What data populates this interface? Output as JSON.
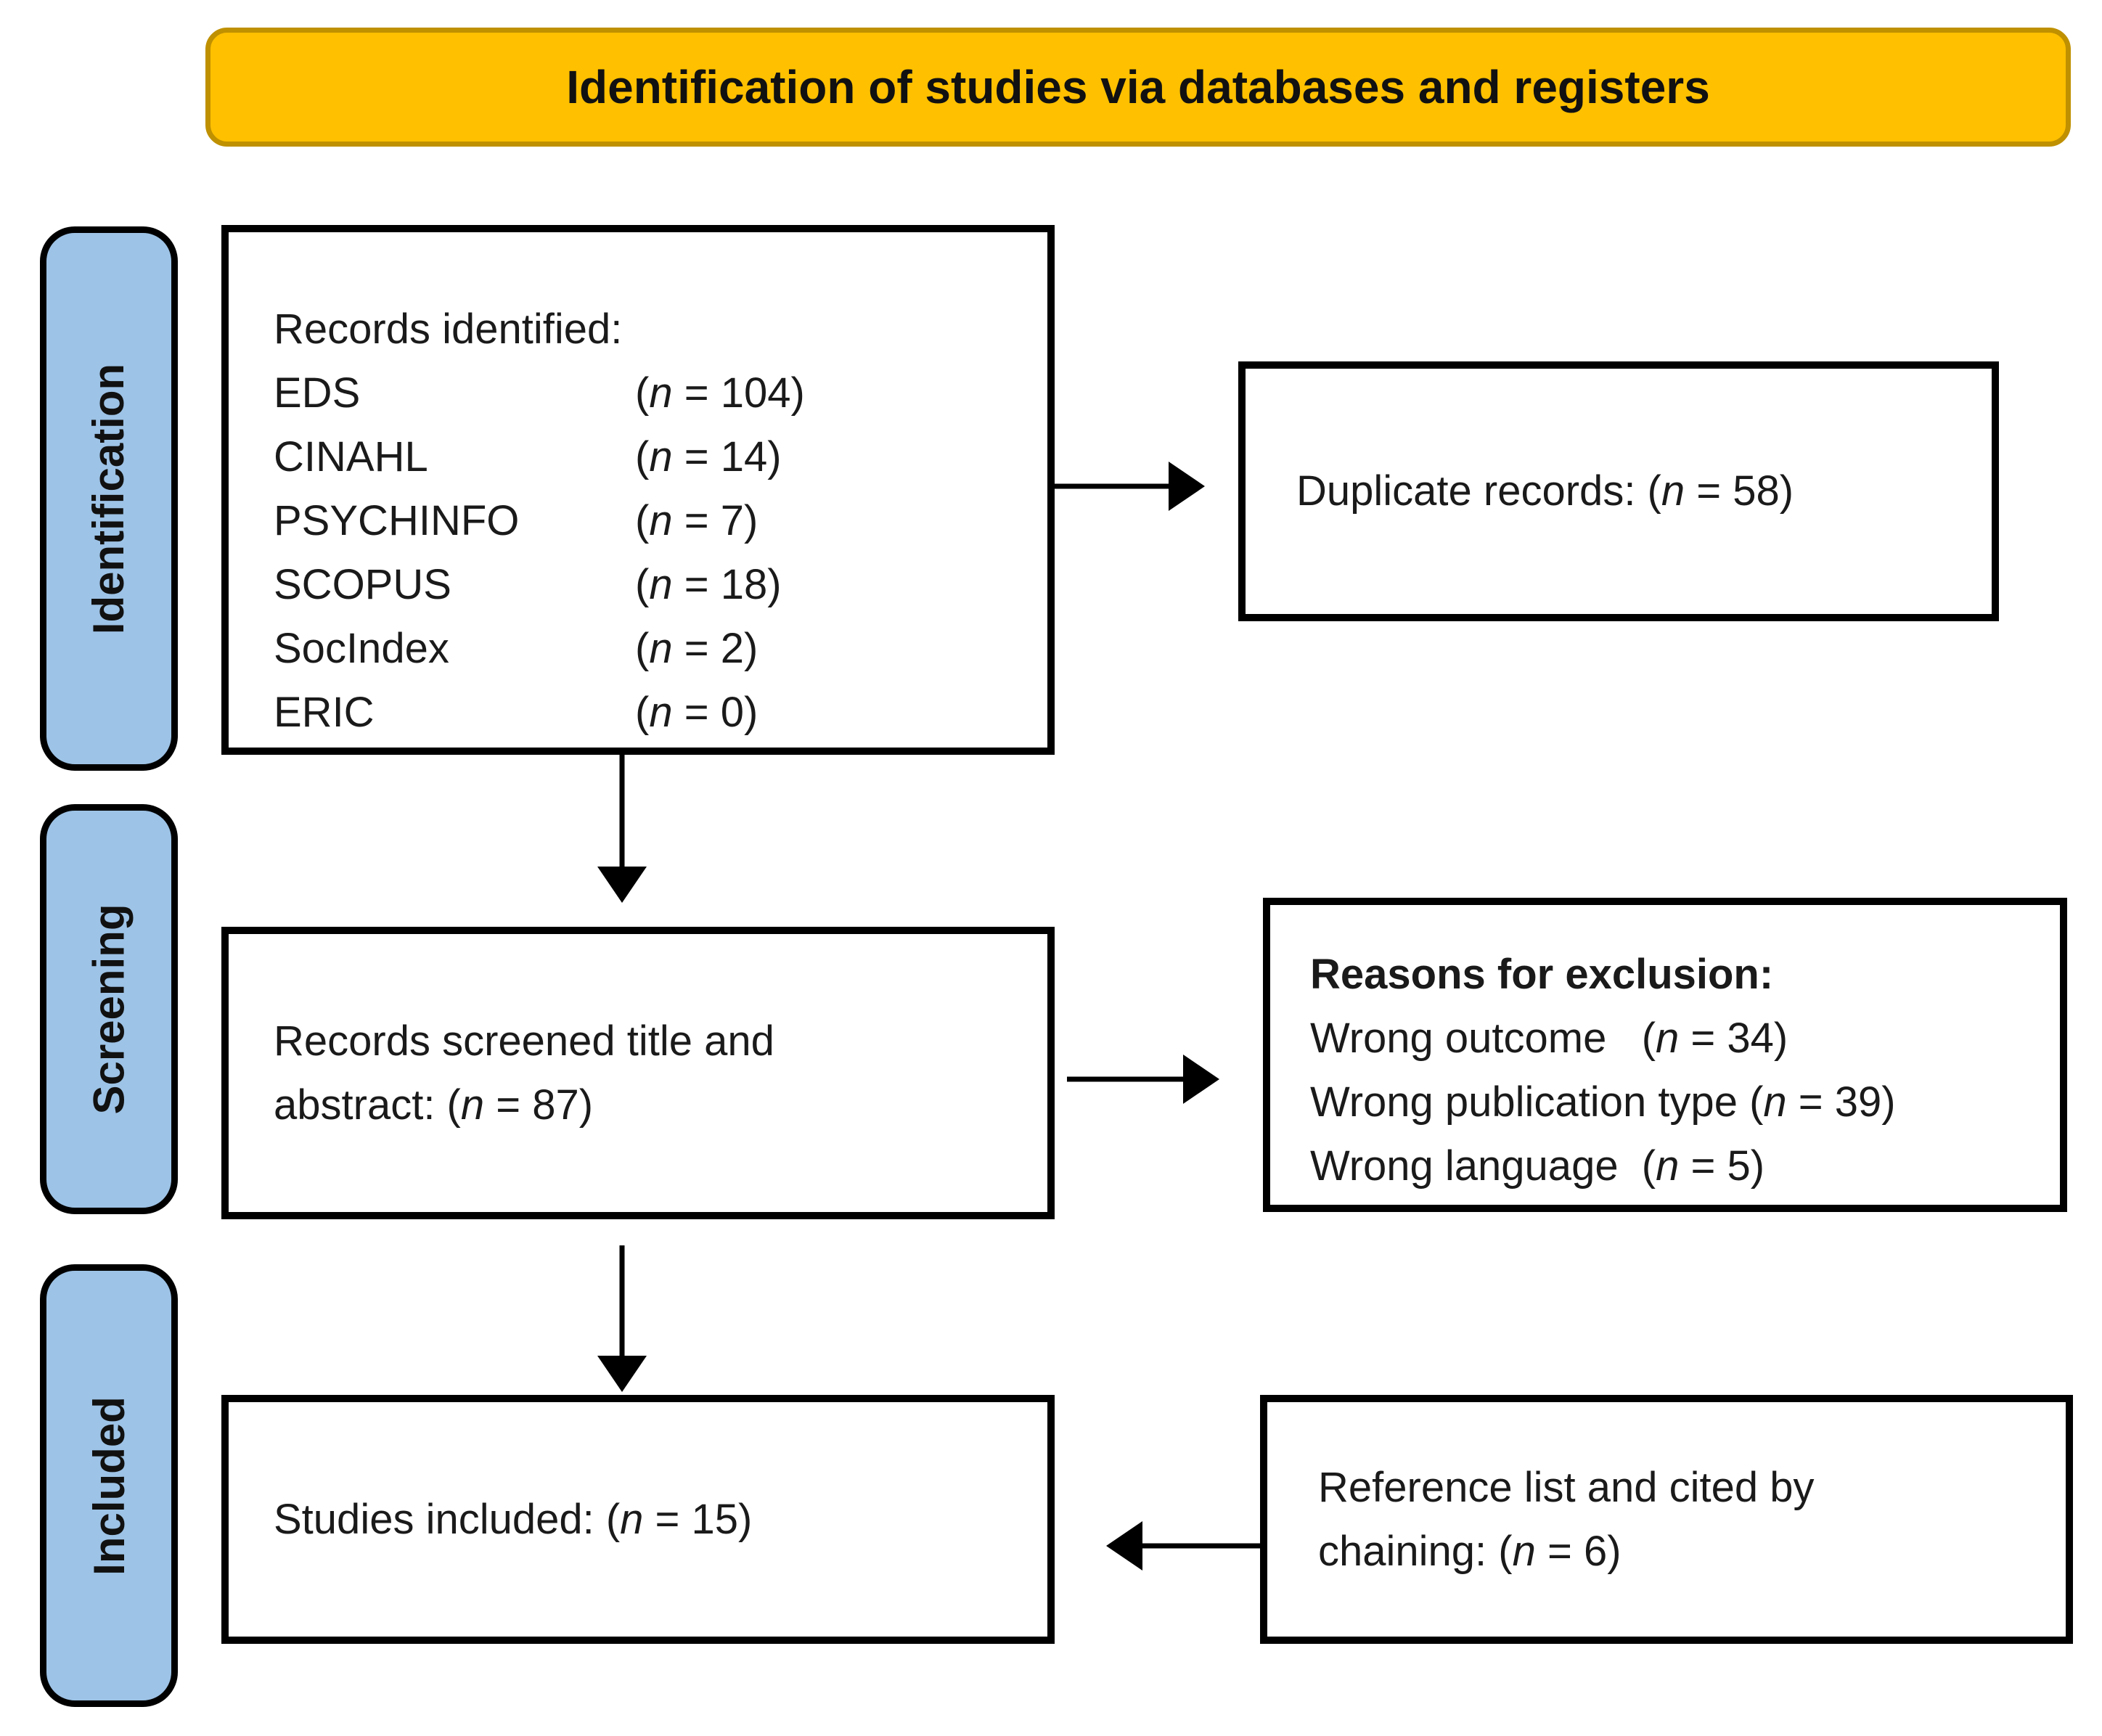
{
  "banner": {
    "title": "Identification of studies via databases and registers"
  },
  "sidebar": {
    "items": [
      {
        "label": "Identification"
      },
      {
        "label": "Screening"
      },
      {
        "label": "Included"
      }
    ]
  },
  "flow": {
    "records_identified": {
      "heading": "Records identified:",
      "rows": [
        {
          "source": "EDS",
          "n": "(n = 104)"
        },
        {
          "source": "CINAHL",
          "n": "(n = 14)"
        },
        {
          "source": "PSYCHINFO",
          "n": "(n = 7)"
        },
        {
          "source": "SCOPUS",
          "n": "(n = 18)"
        },
        {
          "source": "SocIndex",
          "n": "(n = 2)"
        },
        {
          "source": "ERIC",
          "n": "(n = 0)"
        }
      ]
    },
    "duplicate_records": {
      "text": "Duplicate records: (n = 58)"
    },
    "records_screened": {
      "text": "Records screened title and abstract: (n = 87)"
    },
    "reasons_for_exclusion": {
      "heading": "Reasons for exclusion:",
      "rows": [
        {
          "text": "Wrong outcome   (n = 34)"
        },
        {
          "text": "Wrong publication type (n = 39)"
        },
        {
          "text": "Wrong language  (n = 5)"
        }
      ]
    },
    "studies_included": {
      "text": "Studies included: (n = 15)"
    },
    "reference_chaining": {
      "text": "Reference list and cited by chaining: (n = 6)"
    }
  },
  "colors": {
    "banner_fill": "#FFC000",
    "banner_border": "#BF9000",
    "stage_label_fill": "#9DC3E6",
    "box_border": "#000000",
    "arrow": "#000000",
    "text": "#1A1A1A"
  }
}
